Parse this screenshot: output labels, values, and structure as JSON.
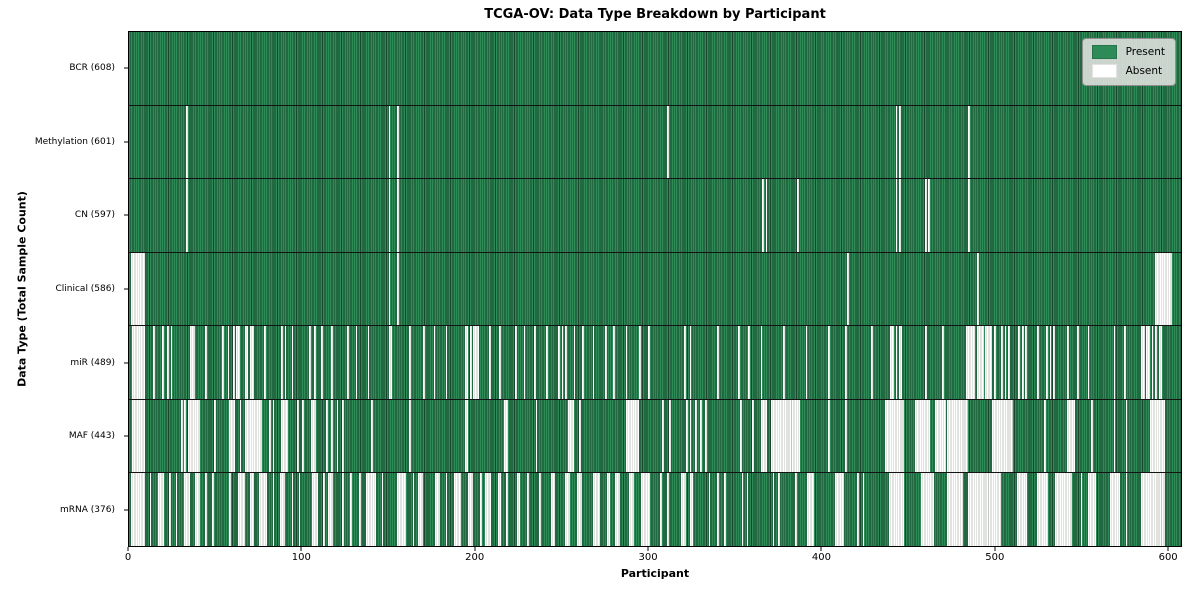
{
  "chart_data": {
    "type": "heatmap",
    "title": "TCGA-OV: Data Type Breakdown by Participant",
    "xlabel": "Participant",
    "ylabel": "Data Type (Total Sample Count)",
    "n_participants": 608,
    "x_ticks": [
      0,
      100,
      200,
      300,
      400,
      500,
      600
    ],
    "grid": false,
    "legend_position": "upper right",
    "present_color": "#2e8b57",
    "absent_color": "#ffffff",
    "legend": [
      {
        "label": "Present"
      },
      {
        "label": "Absent"
      }
    ],
    "rows": [
      {
        "label": "BCR (608)",
        "name": "bcr",
        "present_count": 608,
        "absent_count": 0,
        "absent_intervals": []
      },
      {
        "label": "Methylation (601)",
        "name": "methylation",
        "present_count": 601,
        "absent_count": 7,
        "absent_intervals": [
          [
            33,
            33
          ],
          [
            150,
            150
          ],
          [
            155,
            155
          ],
          [
            311,
            311
          ],
          [
            443,
            443
          ],
          [
            445,
            445
          ],
          [
            485,
            485
          ]
        ]
      },
      {
        "label": "CN (597)",
        "name": "cn",
        "present_count": 597,
        "absent_count": 11,
        "absent_intervals": [
          [
            33,
            33
          ],
          [
            150,
            150
          ],
          [
            155,
            155
          ],
          [
            366,
            366
          ],
          [
            368,
            368
          ],
          [
            386,
            386
          ],
          [
            443,
            443
          ],
          [
            445,
            445
          ],
          [
            460,
            460
          ],
          [
            462,
            462
          ],
          [
            485,
            485
          ]
        ]
      },
      {
        "label": "Clinical (586)",
        "name": "clinical",
        "present_count": 586,
        "absent_count": 22,
        "absent_intervals": [
          [
            1,
            8
          ],
          [
            150,
            150
          ],
          [
            155,
            155
          ],
          [
            415,
            415
          ],
          [
            490,
            490
          ],
          [
            593,
            602
          ]
        ]
      },
      {
        "label": "miR (489)",
        "name": "mir",
        "present_count": 489,
        "absent_count": 119,
        "absent_intervals": [
          [
            2,
            8
          ],
          [
            14,
            14
          ],
          [
            19,
            19
          ],
          [
            22,
            22
          ],
          [
            24,
            24
          ],
          [
            35,
            37
          ],
          [
            44,
            44
          ],
          [
            54,
            54
          ],
          [
            57,
            57
          ],
          [
            60,
            60
          ],
          [
            62,
            63
          ],
          [
            67,
            68
          ],
          [
            70,
            71
          ],
          [
            78,
            78
          ],
          [
            88,
            88
          ],
          [
            90,
            90
          ],
          [
            94,
            94
          ],
          [
            104,
            104
          ],
          [
            107,
            107
          ],
          [
            111,
            111
          ],
          [
            117,
            117
          ],
          [
            126,
            126
          ],
          [
            131,
            131
          ],
          [
            138,
            138
          ],
          [
            150,
            151
          ],
          [
            162,
            162
          ],
          [
            170,
            170
          ],
          [
            176,
            176
          ],
          [
            183,
            183
          ],
          [
            194,
            195
          ],
          [
            197,
            197
          ],
          [
            199,
            201
          ],
          [
            208,
            208
          ],
          [
            214,
            214
          ],
          [
            223,
            223
          ],
          [
            228,
            228
          ],
          [
            234,
            234
          ],
          [
            241,
            241
          ],
          [
            248,
            248
          ],
          [
            250,
            250
          ],
          [
            252,
            252
          ],
          [
            257,
            257
          ],
          [
            262,
            262
          ],
          [
            268,
            268
          ],
          [
            275,
            275
          ],
          [
            280,
            280
          ],
          [
            287,
            287
          ],
          [
            295,
            295
          ],
          [
            300,
            300
          ],
          [
            321,
            321
          ],
          [
            324,
            324
          ],
          [
            340,
            340
          ],
          [
            352,
            352
          ],
          [
            358,
            358
          ],
          [
            365,
            365
          ],
          [
            378,
            378
          ],
          [
            391,
            391
          ],
          [
            404,
            404
          ],
          [
            414,
            414
          ],
          [
            429,
            429
          ],
          [
            440,
            441
          ],
          [
            443,
            443
          ],
          [
            445,
            446
          ],
          [
            460,
            460
          ],
          [
            470,
            470
          ],
          [
            484,
            488
          ],
          [
            490,
            493
          ],
          [
            495,
            498
          ],
          [
            500,
            500
          ],
          [
            504,
            504
          ],
          [
            506,
            506
          ],
          [
            508,
            508
          ],
          [
            514,
            514
          ],
          [
            516,
            516
          ],
          [
            518,
            518
          ],
          [
            525,
            525
          ],
          [
            530,
            530
          ],
          [
            532,
            532
          ],
          [
            534,
            534
          ],
          [
            542,
            542
          ],
          [
            548,
            548
          ],
          [
            554,
            554
          ],
          [
            569,
            569
          ],
          [
            575,
            575
          ],
          [
            585,
            586
          ],
          [
            588,
            589
          ],
          [
            591,
            591
          ],
          [
            593,
            593
          ],
          [
            595,
            596
          ]
        ]
      },
      {
        "label": "MAF (443)",
        "name": "maf",
        "present_count": 443,
        "absent_count": 165,
        "absent_intervals": [
          [
            2,
            8
          ],
          [
            30,
            30
          ],
          [
            32,
            32
          ],
          [
            34,
            40
          ],
          [
            49,
            49
          ],
          [
            58,
            60
          ],
          [
            64,
            64
          ],
          [
            67,
            76
          ],
          [
            81,
            81
          ],
          [
            83,
            83
          ],
          [
            88,
            91
          ],
          [
            97,
            97
          ],
          [
            100,
            100
          ],
          [
            105,
            107
          ],
          [
            114,
            114
          ],
          [
            117,
            117
          ],
          [
            120,
            120
          ],
          [
            123,
            123
          ],
          [
            140,
            140
          ],
          [
            162,
            162
          ],
          [
            194,
            195
          ],
          [
            217,
            218
          ],
          [
            235,
            235
          ],
          [
            254,
            256
          ],
          [
            260,
            260
          ],
          [
            287,
            294
          ],
          [
            308,
            308
          ],
          [
            312,
            312
          ],
          [
            322,
            322
          ],
          [
            324,
            324
          ],
          [
            327,
            327
          ],
          [
            330,
            330
          ],
          [
            333,
            333
          ],
          [
            353,
            353
          ],
          [
            360,
            360
          ],
          [
            365,
            368
          ],
          [
            371,
            387
          ],
          [
            404,
            404
          ],
          [
            414,
            414
          ],
          [
            437,
            447
          ],
          [
            454,
            462
          ],
          [
            466,
            471
          ],
          [
            473,
            484
          ],
          [
            499,
            510
          ],
          [
            529,
            529
          ],
          [
            542,
            546
          ],
          [
            556,
            556
          ],
          [
            569,
            569
          ],
          [
            576,
            576
          ],
          [
            590,
            598
          ]
        ]
      },
      {
        "label": "mRNA (376)",
        "name": "mrna",
        "present_count": 376,
        "absent_count": 232,
        "absent_intervals": [
          [
            1,
            8
          ],
          [
            12,
            12
          ],
          [
            17,
            19
          ],
          [
            23,
            23
          ],
          [
            27,
            27
          ],
          [
            32,
            34
          ],
          [
            38,
            40
          ],
          [
            44,
            44
          ],
          [
            48,
            48
          ],
          [
            58,
            58
          ],
          [
            63,
            66
          ],
          [
            70,
            71
          ],
          [
            75,
            79
          ],
          [
            83,
            83
          ],
          [
            87,
            89
          ],
          [
            94,
            94
          ],
          [
            98,
            98
          ],
          [
            106,
            108
          ],
          [
            112,
            112
          ],
          [
            115,
            117
          ],
          [
            123,
            123
          ],
          [
            128,
            128
          ],
          [
            133,
            133
          ],
          [
            137,
            142
          ],
          [
            146,
            146
          ],
          [
            155,
            159
          ],
          [
            164,
            164
          ],
          [
            167,
            169
          ],
          [
            177,
            179
          ],
          [
            183,
            183
          ],
          [
            188,
            191
          ],
          [
            196,
            198
          ],
          [
            203,
            203
          ],
          [
            206,
            208
          ],
          [
            213,
            214
          ],
          [
            218,
            218
          ],
          [
            224,
            225
          ],
          [
            230,
            230
          ],
          [
            237,
            237
          ],
          [
            244,
            245
          ],
          [
            252,
            254
          ],
          [
            259,
            261
          ],
          [
            268,
            271
          ],
          [
            276,
            277
          ],
          [
            281,
            283
          ],
          [
            289,
            291
          ],
          [
            296,
            300
          ],
          [
            307,
            307
          ],
          [
            311,
            311
          ],
          [
            319,
            321
          ],
          [
            324,
            325
          ],
          [
            335,
            335
          ],
          [
            340,
            340
          ],
          [
            344,
            344
          ],
          [
            354,
            354
          ],
          [
            357,
            357
          ],
          [
            372,
            372
          ],
          [
            375,
            375
          ],
          [
            385,
            385
          ],
          [
            392,
            395
          ],
          [
            408,
            412
          ],
          [
            421,
            421
          ],
          [
            424,
            424
          ],
          [
            439,
            447
          ],
          [
            458,
            464
          ],
          [
            473,
            481
          ],
          [
            485,
            503
          ],
          [
            513,
            518
          ],
          [
            525,
            530
          ],
          [
            535,
            544
          ],
          [
            550,
            550
          ],
          [
            554,
            558
          ],
          [
            567,
            572
          ],
          [
            576,
            576
          ],
          [
            585,
            598
          ]
        ]
      }
    ]
  }
}
